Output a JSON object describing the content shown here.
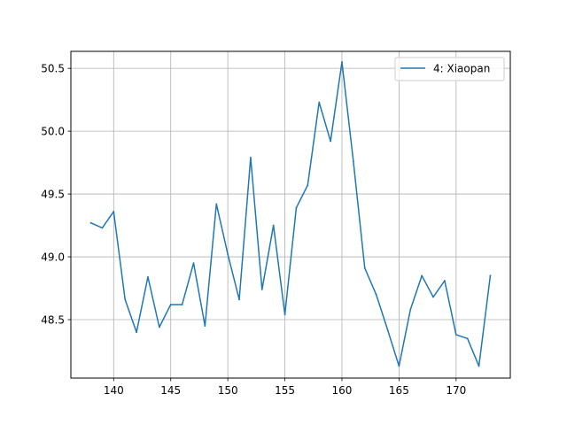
{
  "chart_data": {
    "type": "line",
    "title": "",
    "xlabel": "",
    "ylabel": "",
    "xlim": [
      136.25,
      174.75
    ],
    "ylim": [
      48.035,
      50.635
    ],
    "grid": true,
    "legend_position": "top-right",
    "x_ticks": [
      140,
      145,
      150,
      155,
      160,
      165,
      170
    ],
    "y_ticks": [
      48.5,
      49.0,
      49.5,
      50.0,
      50.5
    ],
    "x_tick_labels": [
      "140",
      "145",
      "150",
      "155",
      "160",
      "165",
      "170"
    ],
    "y_tick_labels": [
      "48.5",
      "49.0",
      "49.5",
      "50.0",
      "50.5"
    ],
    "series": [
      {
        "name": "4: Xiaopan",
        "color": "#1f77b4",
        "x": [
          138,
          139,
          140,
          141,
          142,
          143,
          144,
          145,
          146,
          147,
          148,
          149,
          150,
          151,
          152,
          153,
          154,
          155,
          156,
          157,
          158,
          159,
          160,
          161,
          162,
          163,
          164,
          165,
          166,
          167,
          168,
          169,
          170,
          171,
          172,
          173
        ],
        "y": [
          49.27,
          49.23,
          49.36,
          48.66,
          48.4,
          48.84,
          48.44,
          48.62,
          48.62,
          48.95,
          48.45,
          49.42,
          49.02,
          48.66,
          49.79,
          48.74,
          49.25,
          48.54,
          49.39,
          49.57,
          50.23,
          49.92,
          50.55,
          49.76,
          48.91,
          48.7,
          48.42,
          48.13,
          48.58,
          48.85,
          48.68,
          48.81,
          48.38,
          48.35,
          48.13,
          48.85
        ]
      }
    ]
  }
}
